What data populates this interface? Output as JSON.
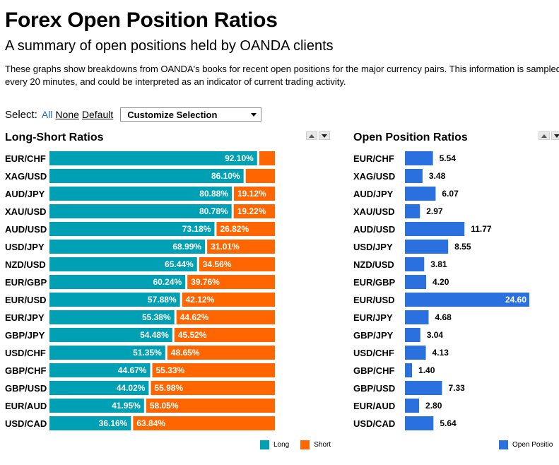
{
  "header": {
    "title": "Forex Open Position Ratios",
    "subtitle": "A summary of open positions held by OANDA clients",
    "description": "These graphs show breakdowns from OANDA's books for recent open positions for the major currency pairs. This information is sampled every 20 minutes, and could be interpreted as an indicator of current trading activity."
  },
  "select": {
    "label": "Select:",
    "all": "All",
    "none": "None",
    "default": "Default",
    "dropdown": "Customize Selection"
  },
  "colors": {
    "long": "#00a0b4",
    "short": "#ff6600",
    "open": "#2b70df"
  },
  "chart_data": [
    {
      "type": "bar",
      "title": "Long-Short Ratios",
      "stacked": true,
      "orientation": "horizontal",
      "categories": [
        "EUR/CHF",
        "XAG/USD",
        "AUD/JPY",
        "XAU/USD",
        "AUD/USD",
        "USD/JPY",
        "NZD/USD",
        "EUR/GBP",
        "EUR/USD",
        "EUR/JPY",
        "GBP/JPY",
        "USD/CHF",
        "GBP/CHF",
        "GBP/USD",
        "EUR/AUD",
        "USD/CAD"
      ],
      "series": [
        {
          "name": "Long",
          "values": [
            92.1,
            86.1,
            80.88,
            80.78,
            73.18,
            68.99,
            65.44,
            60.24,
            57.88,
            55.38,
            54.48,
            51.35,
            44.67,
            44.02,
            41.95,
            36.16
          ],
          "labels": [
            "92.10%",
            "86.10%",
            "80.88%",
            "80.78%",
            "73.18%",
            "68.99%",
            "65.44%",
            "60.24%",
            "57.88%",
            "55.38%",
            "54.48%",
            "51.35%",
            "44.67%",
            "44.02%",
            "41.95%",
            "36.16%"
          ]
        },
        {
          "name": "Short",
          "values": [
            7.9,
            13.9,
            19.12,
            19.22,
            26.82,
            31.01,
            34.56,
            39.76,
            42.12,
            44.62,
            45.52,
            48.65,
            55.33,
            55.98,
            58.05,
            63.84
          ],
          "labels": [
            "",
            "",
            "19.12%",
            "19.22%",
            "26.82%",
            "31.01%",
            "34.56%",
            "39.76%",
            "42.12%",
            "44.62%",
            "45.52%",
            "48.65%",
            "55.33%",
            "55.98%",
            "58.05%",
            "63.84%"
          ]
        }
      ],
      "xlim": [
        0,
        100
      ],
      "legend": "bottom-right"
    },
    {
      "type": "bar",
      "title": "Open Position Ratios",
      "orientation": "horizontal",
      "categories": [
        "EUR/CHF",
        "XAG/USD",
        "AUD/JPY",
        "XAU/USD",
        "AUD/USD",
        "USD/JPY",
        "NZD/USD",
        "EUR/GBP",
        "EUR/USD",
        "EUR/JPY",
        "GBP/JPY",
        "USD/CHF",
        "GBP/CHF",
        "GBP/USD",
        "EUR/AUD",
        "USD/CAD"
      ],
      "series": [
        {
          "name": "Open Positio",
          "values": [
            5.54,
            3.48,
            6.07,
            2.97,
            11.77,
            8.55,
            3.81,
            4.2,
            24.6,
            4.68,
            3.04,
            4.13,
            1.4,
            7.33,
            2.8,
            5.64
          ],
          "labels": [
            "5.54",
            "3.48",
            "6.07",
            "2.97",
            "11.77",
            "8.55",
            "3.81",
            "4.20",
            "24.60",
            "4.68",
            "3.04",
            "4.13",
            "1.40",
            "7.33",
            "2.80",
            "5.64"
          ]
        }
      ],
      "xlim": [
        0,
        24.6
      ],
      "legend": "bottom-right"
    }
  ]
}
